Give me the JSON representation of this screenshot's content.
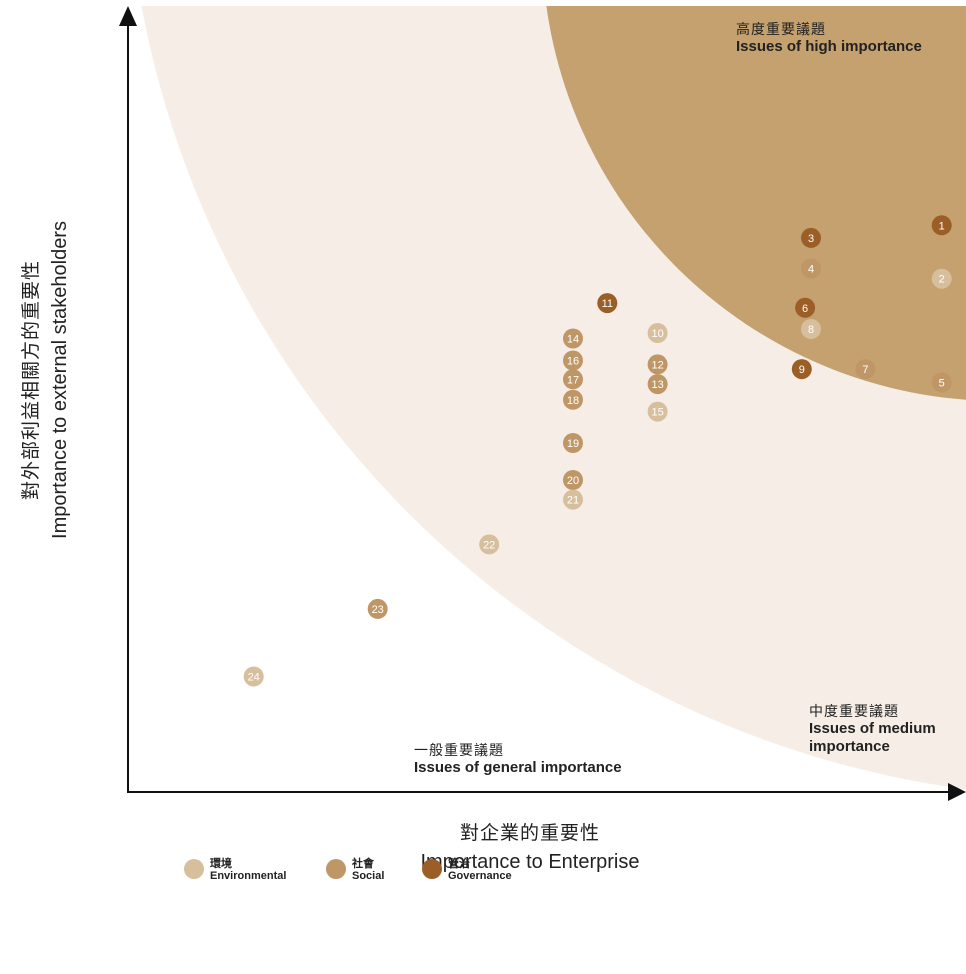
{
  "chart_data": {
    "type": "scatter",
    "xlabel": {
      "zh": "對企業的重要性",
      "en": "Importance to Enterprise"
    },
    "ylabel": {
      "zh": "對外部利益相關方的重要性",
      "en": "Importance to external stakeholders"
    },
    "xlim": [
      0,
      100
    ],
    "ylim": [
      0,
      100
    ],
    "grid": false,
    "legend_position": "bottom-left",
    "zones": [
      {
        "id": "high",
        "zh": "高度重要議題",
        "en": "Issues of high importance",
        "color": "#C4A16E"
      },
      {
        "id": "medium",
        "zh": "中度重要議題",
        "en": "Issues of medium importance",
        "color": "#F6EEE6"
      },
      {
        "id": "general",
        "zh": "一般重要議題",
        "en": "Issues of general importance",
        "color": "#FFFFFF"
      }
    ],
    "categories": [
      {
        "id": "env",
        "zh": "環境",
        "en": "Environmental",
        "color": "#D7BF9E"
      },
      {
        "id": "soc",
        "zh": "社會",
        "en": "Social",
        "color": "#BF9767"
      },
      {
        "id": "gov",
        "zh": "管治",
        "en": "Governance",
        "color": "#9C5E27"
      }
    ],
    "points": [
      {
        "label": "1",
        "x": 97.1,
        "y": 72.1,
        "category": "gov"
      },
      {
        "label": "2",
        "x": 97.1,
        "y": 65.3,
        "category": "env"
      },
      {
        "label": "3",
        "x": 81.5,
        "y": 70.5,
        "category": "gov"
      },
      {
        "label": "4",
        "x": 81.5,
        "y": 66.6,
        "category": "soc"
      },
      {
        "label": "5",
        "x": 97.1,
        "y": 52.1,
        "category": "soc"
      },
      {
        "label": "6",
        "x": 80.8,
        "y": 61.6,
        "category": "gov"
      },
      {
        "label": "7",
        "x": 88.0,
        "y": 53.8,
        "category": "soc"
      },
      {
        "label": "8",
        "x": 81.5,
        "y": 58.9,
        "category": "env"
      },
      {
        "label": "9",
        "x": 80.4,
        "y": 53.8,
        "category": "gov"
      },
      {
        "label": "10",
        "x": 63.2,
        "y": 58.4,
        "category": "env"
      },
      {
        "label": "11",
        "x": 57.2,
        "y": 62.2,
        "category": "gov"
      },
      {
        "label": "12",
        "x": 63.2,
        "y": 54.4,
        "category": "soc"
      },
      {
        "label": "13",
        "x": 63.2,
        "y": 51.9,
        "category": "soc"
      },
      {
        "label": "14",
        "x": 53.1,
        "y": 57.7,
        "category": "soc"
      },
      {
        "label": "15",
        "x": 63.2,
        "y": 48.4,
        "category": "env"
      },
      {
        "label": "16",
        "x": 53.1,
        "y": 54.9,
        "category": "soc"
      },
      {
        "label": "17",
        "x": 53.1,
        "y": 52.5,
        "category": "soc"
      },
      {
        "label": "18",
        "x": 53.1,
        "y": 49.9,
        "category": "soc"
      },
      {
        "label": "19",
        "x": 53.1,
        "y": 44.4,
        "category": "soc"
      },
      {
        "label": "20",
        "x": 53.1,
        "y": 39.7,
        "category": "soc"
      },
      {
        "label": "21",
        "x": 53.1,
        "y": 37.2,
        "category": "env"
      },
      {
        "label": "22",
        "x": 43.1,
        "y": 31.5,
        "category": "env"
      },
      {
        "label": "23",
        "x": 29.8,
        "y": 23.3,
        "category": "soc"
      },
      {
        "label": "24",
        "x": 15.0,
        "y": 14.7,
        "category": "env"
      }
    ]
  }
}
